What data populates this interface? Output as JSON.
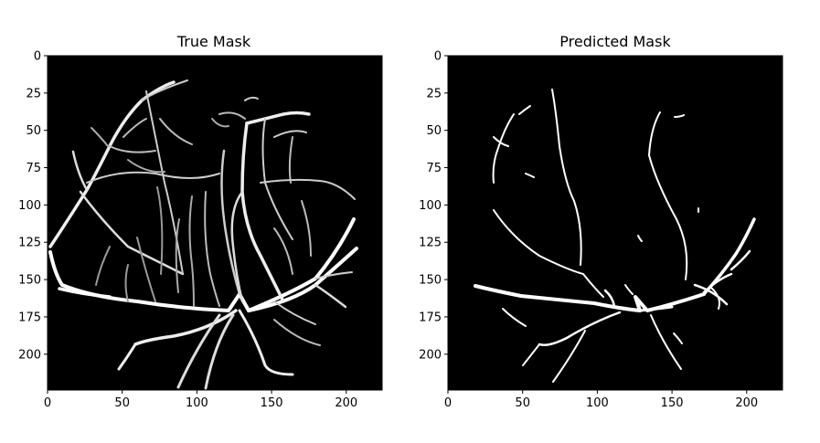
{
  "panels": [
    {
      "id": "true-mask",
      "title": "True Mask",
      "x_ticks": [
        "0",
        "50",
        "100",
        "150",
        "200"
      ],
      "y_ticks": [
        "0",
        "25",
        "50",
        "75",
        "100",
        "125",
        "150",
        "175",
        "200"
      ],
      "image": "vessel-mask-ground-truth"
    },
    {
      "id": "predicted-mask",
      "title": "Predicted Mask",
      "x_ticks": [
        "0",
        "50",
        "100",
        "150",
        "200"
      ],
      "y_ticks": [
        "0",
        "25",
        "50",
        "75",
        "100",
        "125",
        "150",
        "175",
        "200"
      ],
      "image": "vessel-mask-prediction"
    }
  ],
  "colors": {
    "background": "#000000",
    "vessel": "#ffffff",
    "axis": "#000000"
  }
}
